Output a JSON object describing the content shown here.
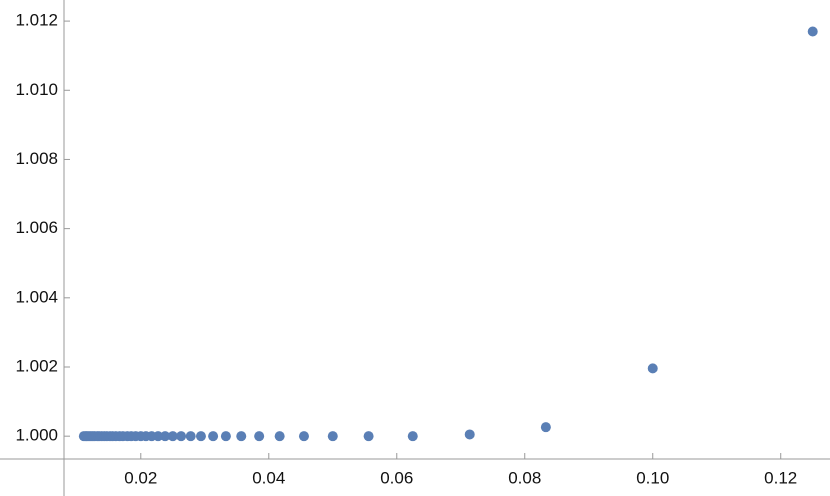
{
  "chart_data": {
    "type": "scatter",
    "color": "#5a7fb5",
    "x": [
      0.125,
      0.1,
      0.0833,
      0.0714,
      0.0625,
      0.0556,
      0.05,
      0.0455,
      0.0417,
      0.0385,
      0.0357,
      0.0333,
      0.0313,
      0.0294,
      0.0278,
      0.0263,
      0.025,
      0.0238,
      0.0227,
      0.0217,
      0.0208,
      0.02,
      0.0192,
      0.0185,
      0.0179,
      0.0172,
      0.0167,
      0.0161,
      0.0156,
      0.0152,
      0.0147,
      0.0143,
      0.0139,
      0.0135,
      0.0132,
      0.0128,
      0.0125,
      0.0122,
      0.0119,
      0.0116,
      0.0114,
      0.0111
    ],
    "values": [
      1.0117,
      1.00196,
      1.00026,
      1.00005,
      1,
      1,
      1,
      1,
      1,
      1,
      1,
      1,
      1,
      1,
      1,
      1,
      1,
      1,
      1,
      1,
      1,
      1,
      1,
      1,
      1,
      1,
      1,
      1,
      1,
      1,
      1,
      1,
      1,
      1,
      1,
      1,
      1,
      1,
      1,
      1,
      1,
      1
    ],
    "xlim": [
      0.008,
      0.1277
    ],
    "ylim": [
      0.99934,
      1.01261
    ],
    "xticks": [
      0.02,
      0.04,
      0.06,
      0.08,
      {
        "value": 0.1,
        "label": "0.10"
      },
      0.12
    ],
    "yticks": [
      {
        "value": 1,
        "label": "1.000"
      },
      {
        "value": 1.002,
        "label": "1.002"
      },
      {
        "value": 1.004,
        "label": "1.004"
      },
      {
        "value": 1.006,
        "label": "1.006"
      },
      {
        "value": 1.008,
        "label": "1.008"
      },
      {
        "value": 1.01,
        "label": "1.010"
      },
      {
        "value": 1.012,
        "label": "1.012"
      }
    ]
  }
}
